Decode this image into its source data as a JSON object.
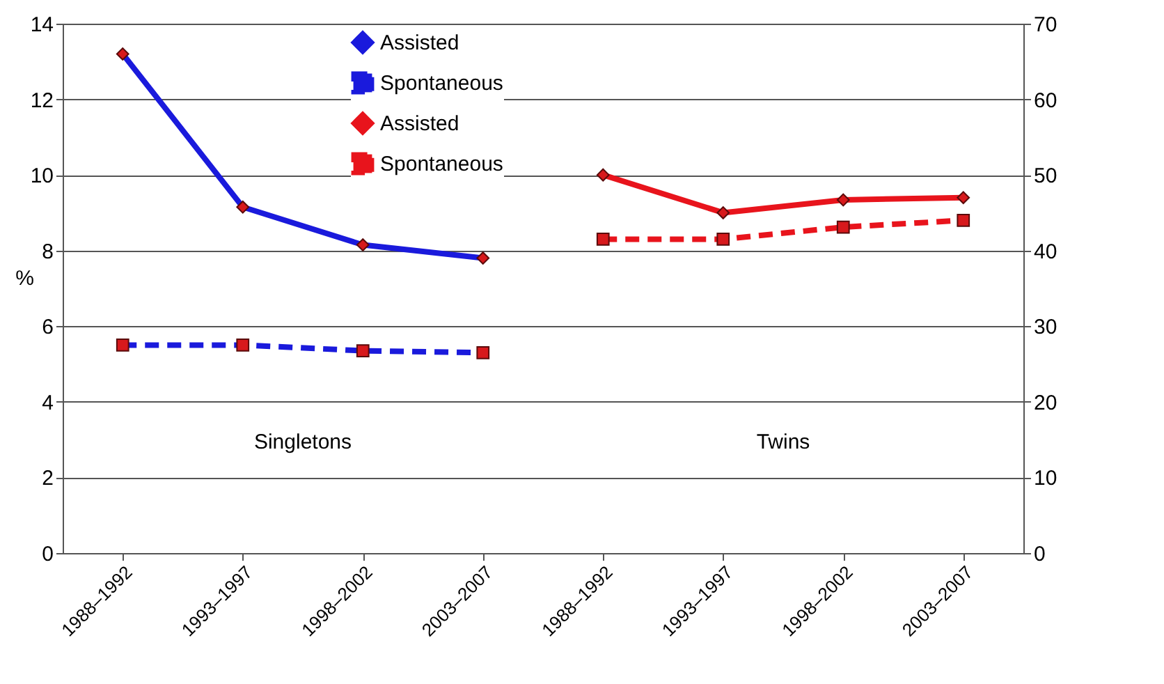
{
  "chart_data": {
    "type": "line",
    "categories": [
      "1988–1992",
      "1993–1997",
      "1998–2002",
      "2003–2007",
      "1988–1992",
      "1993–1997",
      "1998–2002",
      "2003–2007"
    ],
    "ylabel": "%",
    "series": [
      {
        "name": "Assisted",
        "color": "#1a1adc",
        "values": [
          13.2,
          9.15,
          8.15,
          7.8,
          null,
          null,
          null,
          null
        ],
        "marker": "diamond",
        "line_style": "solid"
      },
      {
        "name": "Spontaneous",
        "color": "#1a1adc",
        "values": [
          5.5,
          5.5,
          5.35,
          5.3,
          null,
          null,
          null,
          null
        ],
        "marker": "square",
        "line_style": "dashed"
      },
      {
        "name": "Assisted",
        "color": "#e8141c",
        "values": [
          null,
          null,
          null,
          null,
          50,
          45,
          46.7,
          47
        ],
        "marker": "diamond",
        "line_style": "solid",
        "axis": "y2"
      },
      {
        "name": "Spontaneous",
        "color": "#e8141c",
        "values": [
          null,
          null,
          null,
          null,
          41.5,
          41.5,
          43.1,
          44
        ],
        "marker": "square",
        "line_style": "dashed",
        "axis": "y2"
      }
    ],
    "ylim": [
      0,
      14
    ],
    "yticks": [
      0,
      2,
      4,
      6,
      8,
      10,
      12,
      14
    ],
    "y2lim": [
      0,
      70
    ],
    "y2ticks": [
      0,
      10,
      20,
      30,
      40,
      50,
      60,
      70
    ],
    "annotations": [
      "Singletons",
      "Twins"
    ],
    "grid": "y",
    "legend": "top"
  }
}
